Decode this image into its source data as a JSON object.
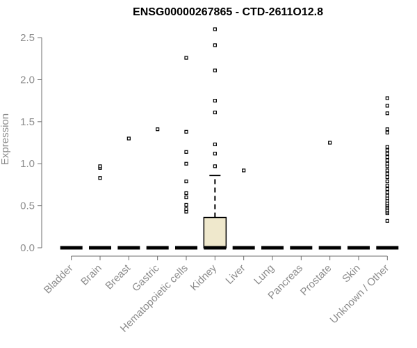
{
  "chart_data": {
    "type": "box",
    "title": "ENSG00000267865 - CTD-2611O12.8",
    "xlabel": "",
    "ylabel": "Expression",
    "ylim": [
      0,
      2.6
    ],
    "yticks": [
      0.0,
      0.5,
      1.0,
      1.5,
      2.0,
      2.5
    ],
    "ytick_labels": [
      "0.0",
      "0.5",
      "1.0",
      "1.5",
      "2.0",
      "2.5"
    ],
    "categories": [
      "Bladder",
      "Brain",
      "Breast",
      "Gastric",
      "Hematopoietic cells",
      "Kidney",
      "Liver",
      "Lung",
      "Pancreas",
      "Prostate",
      "Skin",
      "Unknown / Other"
    ],
    "box_fill": "#efe8cc",
    "boxes": [
      {
        "category": "Bladder",
        "q1": 0,
        "median": 0,
        "q3": 0,
        "whisker_low": 0,
        "whisker_high": 0,
        "outliers": []
      },
      {
        "category": "Brain",
        "q1": 0,
        "median": 0,
        "q3": 0,
        "whisker_low": 0,
        "whisker_high": 0,
        "outliers": [
          0.83,
          0.95,
          0.97
        ]
      },
      {
        "category": "Breast",
        "q1": 0,
        "median": 0,
        "q3": 0,
        "whisker_low": 0,
        "whisker_high": 0,
        "outliers": [
          1.3
        ]
      },
      {
        "category": "Gastric",
        "q1": 0,
        "median": 0,
        "q3": 0,
        "whisker_low": 0,
        "whisker_high": 0,
        "outliers": [
          1.41
        ]
      },
      {
        "category": "Hematopoietic cells",
        "q1": 0,
        "median": 0,
        "q3": 0,
        "whisker_low": 0,
        "whisker_high": 0,
        "outliers": [
          0.43,
          0.46,
          0.51,
          0.6,
          0.65,
          0.79,
          1.0,
          1.14,
          1.38,
          2.26
        ]
      },
      {
        "category": "Kidney",
        "q1": 0,
        "median": 0,
        "q3": 0.36,
        "whisker_low": 0,
        "whisker_high": 0.86,
        "outliers": [
          0.97,
          1.12,
          1.23,
          1.61,
          1.75,
          2.11,
          2.41,
          2.6
        ]
      },
      {
        "category": "Liver",
        "q1": 0,
        "median": 0,
        "q3": 0,
        "whisker_low": 0,
        "whisker_high": 0,
        "outliers": [
          0.92
        ]
      },
      {
        "category": "Lung",
        "q1": 0,
        "median": 0,
        "q3": 0,
        "whisker_low": 0,
        "whisker_high": 0,
        "outliers": []
      },
      {
        "category": "Pancreas",
        "q1": 0,
        "median": 0,
        "q3": 0,
        "whisker_low": 0,
        "whisker_high": 0,
        "outliers": []
      },
      {
        "category": "Prostate",
        "q1": 0,
        "median": 0,
        "q3": 0,
        "whisker_low": 0,
        "whisker_high": 0,
        "outliers": [
          1.25
        ]
      },
      {
        "category": "Skin",
        "q1": 0,
        "median": 0,
        "q3": 0,
        "whisker_low": 0,
        "whisker_high": 0,
        "outliers": []
      },
      {
        "category": "Unknown / Other",
        "q1": 0,
        "median": 0,
        "q3": 0,
        "whisker_low": 0,
        "whisker_high": 0,
        "outliers": [
          0.32,
          0.41,
          0.43,
          0.45,
          0.47,
          0.49,
          0.51,
          0.53,
          0.56,
          0.59,
          0.62,
          0.66,
          0.7,
          0.74,
          0.79,
          0.84,
          0.88,
          0.92,
          0.97,
          1.0,
          1.04,
          1.08,
          1.12,
          1.16,
          1.2,
          1.37,
          1.41,
          1.6,
          1.69,
          1.78
        ]
      }
    ]
  }
}
